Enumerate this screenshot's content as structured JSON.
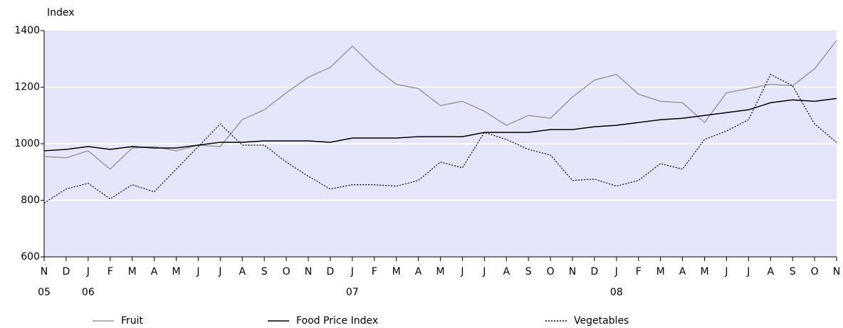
{
  "chart_data": {
    "type": "line",
    "y_label": "Index",
    "categories": [
      "N",
      "D",
      "J",
      "F",
      "M",
      "A",
      "M",
      "J",
      "J",
      "A",
      "S",
      "O",
      "N",
      "D",
      "J",
      "F",
      "M",
      "A",
      "M",
      "J",
      "J",
      "A",
      "S",
      "O",
      "N",
      "D",
      "J",
      "F",
      "M",
      "A",
      "M",
      "J",
      "J",
      "A",
      "S",
      "O",
      "N"
    ],
    "year_labels": [
      "05",
      null,
      "06",
      null,
      null,
      null,
      null,
      null,
      null,
      null,
      null,
      null,
      null,
      null,
      "07",
      null,
      null,
      null,
      null,
      null,
      null,
      null,
      null,
      null,
      null,
      null,
      "08",
      null,
      null,
      null,
      null,
      null,
      null,
      null,
      null,
      null,
      null
    ],
    "ylim": [
      600,
      1400
    ],
    "yticks": [
      600,
      800,
      1000,
      1200,
      1400
    ],
    "grid": true,
    "series": [
      {
        "name": "Fruit",
        "color": "#9a9a9a",
        "style": "solid",
        "values": [
          955,
          950,
          975,
          910,
          985,
          990,
          975,
          995,
          990,
          1085,
          1120,
          1180,
          1235,
          1270,
          1345,
          1270,
          1210,
          1195,
          1135,
          1150,
          1115,
          1065,
          1100,
          1090,
          1165,
          1225,
          1245,
          1175,
          1150,
          1145,
          1075,
          1180,
          1195,
          1210,
          1205,
          1265,
          1365
        ]
      },
      {
        "name": "Food Price Index",
        "color": "#000000",
        "style": "solid",
        "values": [
          975,
          980,
          990,
          980,
          990,
          985,
          985,
          995,
          1005,
          1005,
          1010,
          1010,
          1010,
          1005,
          1020,
          1020,
          1020,
          1025,
          1025,
          1025,
          1040,
          1040,
          1040,
          1050,
          1050,
          1060,
          1065,
          1075,
          1085,
          1090,
          1100,
          1110,
          1120,
          1145,
          1155,
          1150,
          1160
        ]
      },
      {
        "name": "Vegetables",
        "color": "#000000",
        "style": "dotted",
        "values": [
          790,
          840,
          860,
          805,
          855,
          830,
          910,
          990,
          1070,
          995,
          995,
          935,
          885,
          840,
          855,
          855,
          850,
          870,
          935,
          915,
          1040,
          1015,
          980,
          960,
          870,
          875,
          850,
          870,
          930,
          910,
          1015,
          1045,
          1085,
          1245,
          1205,
          1070,
          1005
        ]
      }
    ]
  }
}
